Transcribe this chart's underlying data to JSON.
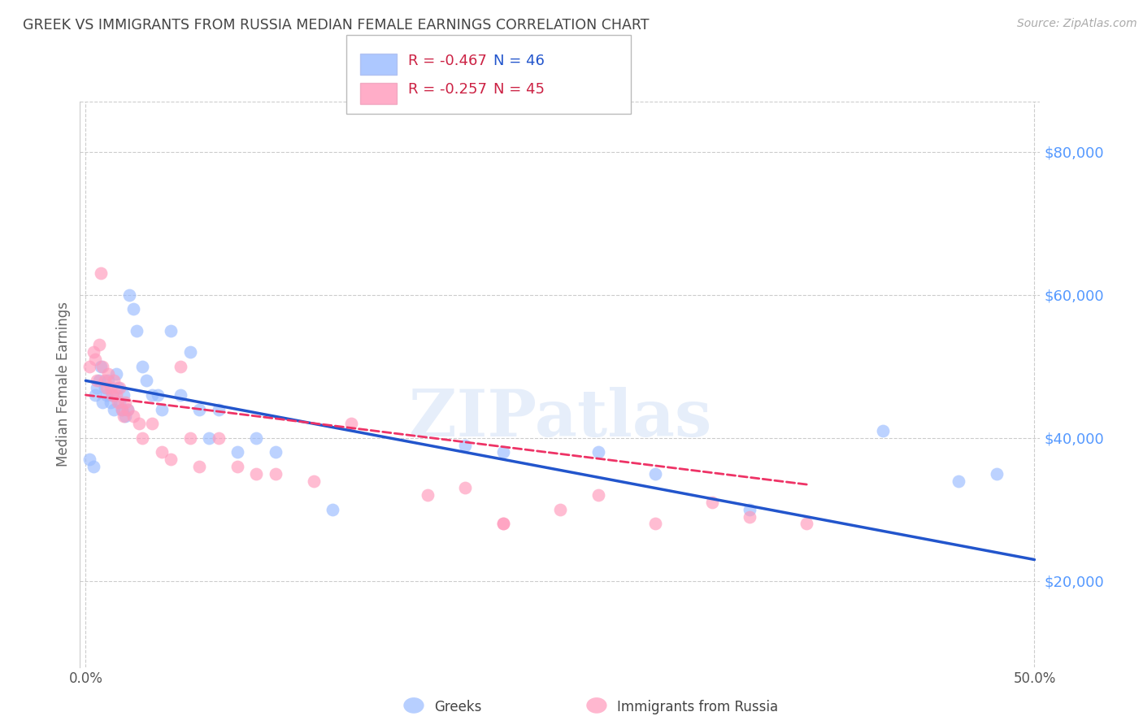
{
  "title": "GREEK VS IMMIGRANTS FROM RUSSIA MEDIAN FEMALE EARNINGS CORRELATION CHART",
  "source": "Source: ZipAtlas.com",
  "ylabel": "Median Female Earnings",
  "ytick_labels": [
    "$20,000",
    "$40,000",
    "$60,000",
    "$80,000"
  ],
  "ytick_values": [
    20000,
    40000,
    60000,
    80000
  ],
  "ymin": 8000,
  "ymax": 87000,
  "xmin": -0.003,
  "xmax": 0.503,
  "watermark": "ZIPatlas",
  "legend_r1": "R = -0.467",
  "legend_n1": "N = 46",
  "legend_r2": "R = -0.257",
  "legend_n2": "N = 45",
  "legend_label1": "Greeks",
  "legend_label2": "Immigrants from Russia",
  "blue_color": "#99bbff",
  "pink_color": "#ff99bb",
  "blue_line_color": "#2255cc",
  "pink_line_color": "#ee3366",
  "grid_color": "#cccccc",
  "title_color": "#444444",
  "source_color": "#aaaaaa",
  "ytick_color": "#5599ff",
  "blue_scatter_x": [
    0.002,
    0.004,
    0.005,
    0.006,
    0.007,
    0.008,
    0.009,
    0.01,
    0.011,
    0.012,
    0.013,
    0.014,
    0.015,
    0.016,
    0.017,
    0.018,
    0.019,
    0.02,
    0.021,
    0.022,
    0.023,
    0.025,
    0.027,
    0.03,
    0.032,
    0.035,
    0.038,
    0.04,
    0.045,
    0.05,
    0.055,
    0.06,
    0.065,
    0.07,
    0.08,
    0.09,
    0.1,
    0.13,
    0.2,
    0.22,
    0.27,
    0.3,
    0.35,
    0.42,
    0.46,
    0.48
  ],
  "blue_scatter_y": [
    37000,
    36000,
    46000,
    47000,
    48000,
    50000,
    45000,
    47000,
    46000,
    48000,
    45000,
    46000,
    44000,
    49000,
    47000,
    45000,
    44000,
    46000,
    43000,
    44000,
    60000,
    58000,
    55000,
    50000,
    48000,
    46000,
    46000,
    44000,
    55000,
    46000,
    52000,
    44000,
    40000,
    44000,
    38000,
    40000,
    38000,
    30000,
    39000,
    38000,
    38000,
    35000,
    30000,
    41000,
    34000,
    35000
  ],
  "pink_scatter_x": [
    0.002,
    0.004,
    0.005,
    0.006,
    0.007,
    0.008,
    0.009,
    0.01,
    0.011,
    0.012,
    0.013,
    0.014,
    0.015,
    0.016,
    0.017,
    0.018,
    0.019,
    0.02,
    0.021,
    0.022,
    0.025,
    0.028,
    0.03,
    0.035,
    0.04,
    0.045,
    0.05,
    0.055,
    0.06,
    0.07,
    0.08,
    0.09,
    0.1,
    0.12,
    0.14,
    0.18,
    0.2,
    0.22,
    0.25,
    0.27,
    0.3,
    0.33,
    0.35,
    0.38,
    0.22
  ],
  "pink_scatter_y": [
    50000,
    52000,
    51000,
    48000,
    53000,
    63000,
    50000,
    48000,
    47000,
    49000,
    47000,
    46000,
    48000,
    46000,
    45000,
    47000,
    44000,
    43000,
    45000,
    44000,
    43000,
    42000,
    40000,
    42000,
    38000,
    37000,
    50000,
    40000,
    36000,
    40000,
    36000,
    35000,
    35000,
    34000,
    42000,
    32000,
    33000,
    28000,
    30000,
    32000,
    28000,
    31000,
    29000,
    28000,
    28000
  ],
  "blue_line_x": [
    0.0,
    0.5
  ],
  "blue_line_y": [
    48000,
    23000
  ],
  "pink_line_x": [
    0.0,
    0.38
  ],
  "pink_line_y": [
    46000,
    33500
  ]
}
